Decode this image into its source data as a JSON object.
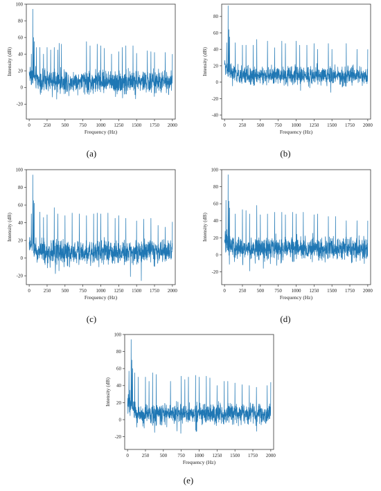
{
  "series_color": "#1f77b4",
  "chart_data": [
    {
      "type": "line",
      "caption": "(a)",
      "xlabel": "Frequency (Hz)",
      "ylabel": "Intensity (dB)",
      "xlim": [
        -40,
        2040
      ],
      "ylim": [
        -38,
        100
      ],
      "xticks": [
        0,
        250,
        500,
        750,
        1000,
        1250,
        1500,
        1750,
        2000
      ],
      "yticks": [
        -20,
        0,
        20,
        40,
        60,
        80,
        100
      ],
      "noise": {
        "baseline": 7,
        "amplitude": 12,
        "low_freq_boost": 10,
        "min": -32
      },
      "peaks": [
        [
          50,
          94
        ],
        [
          30,
          40
        ],
        [
          60,
          60
        ],
        [
          70,
          55
        ],
        [
          100,
          48
        ],
        [
          150,
          48
        ],
        [
          200,
          40
        ],
        [
          250,
          48
        ],
        [
          300,
          45
        ],
        [
          350,
          48
        ],
        [
          400,
          45
        ],
        [
          420,
          53
        ],
        [
          450,
          52
        ],
        [
          800,
          55
        ],
        [
          850,
          50
        ],
        [
          950,
          52
        ],
        [
          1000,
          50
        ],
        [
          1050,
          47
        ],
        [
          1150,
          40
        ],
        [
          1250,
          43
        ],
        [
          1300,
          48
        ],
        [
          1350,
          50
        ],
        [
          1450,
          50
        ],
        [
          1500,
          41
        ],
        [
          1650,
          44
        ],
        [
          1700,
          43
        ],
        [
          1750,
          42
        ],
        [
          1900,
          42
        ],
        [
          2000,
          40
        ]
      ]
    },
    {
      "type": "line",
      "caption": "(b)",
      "xlabel": "Frequency (Hz)",
      "ylabel": "Intensity (dB)",
      "xlim": [
        -40,
        2040
      ],
      "ylim": [
        -45,
        95
      ],
      "xticks": [
        0,
        250,
        500,
        750,
        1000,
        1250,
        1500,
        1750,
        2000
      ],
      "yticks": [
        -40,
        -20,
        0,
        20,
        40,
        60,
        80
      ],
      "noise": {
        "baseline": 8,
        "amplitude": 10,
        "low_freq_boost": 12,
        "min": -38
      },
      "peaks": [
        [
          50,
          93
        ],
        [
          30,
          48
        ],
        [
          60,
          64
        ],
        [
          70,
          55
        ],
        [
          150,
          48
        ],
        [
          250,
          45
        ],
        [
          300,
          45
        ],
        [
          400,
          45
        ],
        [
          450,
          52
        ],
        [
          600,
          50
        ],
        [
          700,
          42
        ],
        [
          800,
          50
        ],
        [
          850,
          47
        ],
        [
          1000,
          50
        ],
        [
          1050,
          45
        ],
        [
          1150,
          45
        ],
        [
          1250,
          47
        ],
        [
          1300,
          40
        ],
        [
          1450,
          47
        ],
        [
          1500,
          40
        ],
        [
          1700,
          47
        ],
        [
          1850,
          40
        ],
        [
          2000,
          40
        ]
      ]
    },
    {
      "type": "line",
      "caption": "(c)",
      "xlabel": "Frequency (Hz)",
      "ylabel": "Intensity (dB)",
      "xlim": [
        -40,
        2040
      ],
      "ylim": [
        -30,
        100
      ],
      "xticks": [
        0,
        250,
        500,
        750,
        1000,
        1250,
        1500,
        1750,
        2000
      ],
      "yticks": [
        -20,
        0,
        20,
        40,
        60,
        80,
        100
      ],
      "noise": {
        "baseline": 7,
        "amplitude": 12,
        "low_freq_boost": 10,
        "min": -27
      },
      "peaks": [
        [
          50,
          94
        ],
        [
          30,
          50
        ],
        [
          60,
          65
        ],
        [
          70,
          62
        ],
        [
          150,
          52
        ],
        [
          200,
          46
        ],
        [
          250,
          49
        ],
        [
          350,
          57
        ],
        [
          400,
          50
        ],
        [
          500,
          48
        ],
        [
          600,
          51
        ],
        [
          700,
          50
        ],
        [
          800,
          48
        ],
        [
          900,
          50
        ],
        [
          950,
          51
        ],
        [
          1000,
          50
        ],
        [
          1100,
          51
        ],
        [
          1200,
          45
        ],
        [
          1250,
          48
        ],
        [
          1350,
          45
        ],
        [
          1500,
          42
        ],
        [
          1600,
          44
        ],
        [
          1700,
          45
        ],
        [
          1800,
          37
        ],
        [
          1900,
          35
        ],
        [
          2000,
          41
        ]
      ]
    },
    {
      "type": "line",
      "caption": "(d)",
      "xlabel": "Frequency (Hz)",
      "ylabel": "Intensity (dB)",
      "xlim": [
        -40,
        2040
      ],
      "ylim": [
        -35,
        100
      ],
      "xticks": [
        0,
        250,
        500,
        750,
        1000,
        1250,
        1500,
        1750,
        2000
      ],
      "yticks": [
        -20,
        0,
        20,
        40,
        60,
        80,
        100
      ],
      "noise": {
        "baseline": 7,
        "amplitude": 12,
        "low_freq_boost": 8,
        "min": -32
      },
      "peaks": [
        [
          50,
          94
        ],
        [
          20,
          64
        ],
        [
          60,
          63
        ],
        [
          70,
          55
        ],
        [
          150,
          48
        ],
        [
          250,
          53
        ],
        [
          300,
          52
        ],
        [
          350,
          48
        ],
        [
          450,
          58
        ],
        [
          500,
          47
        ],
        [
          600,
          48
        ],
        [
          700,
          50
        ],
        [
          800,
          50
        ],
        [
          850,
          47
        ],
        [
          950,
          50
        ],
        [
          1000,
          48
        ],
        [
          1100,
          50
        ],
        [
          1250,
          47
        ],
        [
          1300,
          48
        ],
        [
          1450,
          45
        ],
        [
          1550,
          45
        ],
        [
          1700,
          40
        ],
        [
          1850,
          40
        ],
        [
          2000,
          40
        ]
      ]
    },
    {
      "type": "line",
      "caption": "(e)",
      "xlabel": "Frequency (Hz)",
      "ylabel": "Intensity (dB)",
      "xlim": [
        -40,
        2040
      ],
      "ylim": [
        -35,
        100
      ],
      "xticks": [
        0,
        250,
        500,
        750,
        1000,
        1250,
        1500,
        1750,
        2000
      ],
      "yticks": [
        -20,
        0,
        20,
        40,
        60,
        80,
        100
      ],
      "noise": {
        "baseline": 7,
        "amplitude": 11,
        "low_freq_boost": 14,
        "min": -30
      },
      "peaks": [
        [
          50,
          94
        ],
        [
          20,
          57
        ],
        [
          60,
          70
        ],
        [
          70,
          60
        ],
        [
          100,
          55
        ],
        [
          150,
          50
        ],
        [
          250,
          50
        ],
        [
          300,
          45
        ],
        [
          350,
          55
        ],
        [
          400,
          53
        ],
        [
          600,
          45
        ],
        [
          750,
          51
        ],
        [
          800,
          47
        ],
        [
          850,
          50
        ],
        [
          950,
          52
        ],
        [
          1000,
          50
        ],
        [
          1100,
          51
        ],
        [
          1150,
          49
        ],
        [
          1250,
          40
        ],
        [
          1350,
          45
        ],
        [
          1400,
          45
        ],
        [
          1500,
          43
        ],
        [
          1600,
          41
        ],
        [
          1700,
          40
        ],
        [
          1800,
          38
        ],
        [
          1950,
          40
        ],
        [
          2000,
          44
        ]
      ]
    }
  ]
}
